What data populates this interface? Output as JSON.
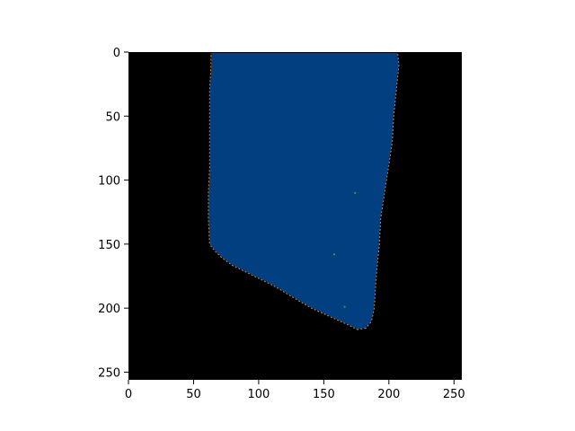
{
  "chart_data": {
    "type": "heatmap",
    "title": "",
    "xlabel": "",
    "ylabel": "",
    "xlim": [
      0,
      256
    ],
    "ylim": [
      256,
      0
    ],
    "y_inverted": true,
    "x_ticks": [
      0,
      50,
      100,
      150,
      200,
      250
    ],
    "y_ticks": [
      0,
      50,
      100,
      150,
      200,
      250
    ],
    "grid": false,
    "legend": "none",
    "colors": {
      "background": "#000000",
      "region": "#023f80",
      "edge": "#c9853a",
      "edge_alt": "#d4a04a",
      "speck": "#33a02c"
    },
    "region_outline": [
      [
        64,
        0
      ],
      [
        206,
        0
      ],
      [
        207,
        10
      ],
      [
        205,
        30
      ],
      [
        203,
        50
      ],
      [
        202,
        70
      ],
      [
        199,
        90
      ],
      [
        196,
        110
      ],
      [
        193,
        130
      ],
      [
        192,
        150
      ],
      [
        190,
        170
      ],
      [
        189,
        185
      ],
      [
        188,
        200
      ],
      [
        186,
        210
      ],
      [
        182,
        215
      ],
      [
        176,
        216
      ],
      [
        168,
        212
      ],
      [
        155,
        206
      ],
      [
        140,
        199
      ],
      [
        125,
        190
      ],
      [
        112,
        182
      ],
      [
        100,
        176
      ],
      [
        90,
        171
      ],
      [
        80,
        166
      ],
      [
        72,
        160
      ],
      [
        67,
        155
      ],
      [
        63,
        150
      ],
      [
        62,
        130
      ],
      [
        62,
        110
      ],
      [
        63,
        90
      ],
      [
        63,
        60
      ],
      [
        63,
        30
      ],
      [
        64,
        10
      ]
    ],
    "specks": [
      [
        174,
        110
      ],
      [
        158,
        158
      ],
      [
        166,
        199
      ]
    ]
  }
}
